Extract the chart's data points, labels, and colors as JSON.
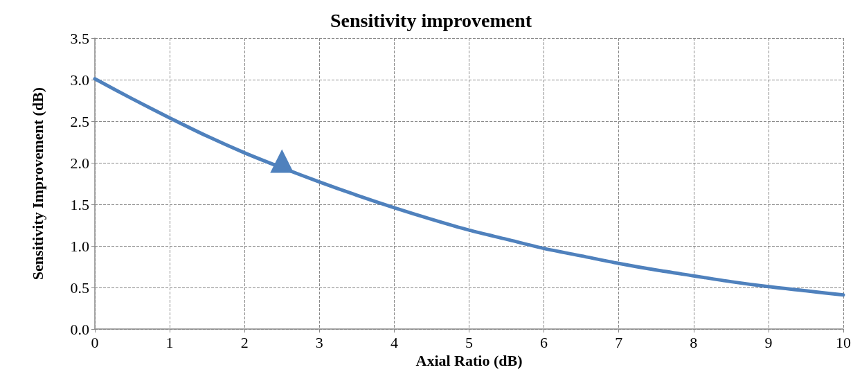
{
  "chart_data": {
    "type": "line",
    "title": "Sensitivity improvement",
    "xlabel": "Axial Ratio (dB)",
    "ylabel": "Sensitivity Improvement (dB)",
    "xlim": [
      0,
      10
    ],
    "xticks": [
      0,
      1,
      2,
      3,
      4,
      5,
      6,
      7,
      8,
      9,
      10
    ],
    "ylim": [
      0,
      3.5
    ],
    "yticks": [
      {
        "value": 0,
        "label": "0.0"
      },
      {
        "value": 0.5,
        "label": "0.5"
      },
      {
        "value": 1,
        "label": "1.0"
      },
      {
        "value": 1.5,
        "label": "1.5"
      },
      {
        "value": 2,
        "label": "2.0"
      },
      {
        "value": 2.5,
        "label": "2.5"
      },
      {
        "value": 3,
        "label": "3.0"
      },
      {
        "value": 3.5,
        "label": "3.5"
      }
    ],
    "grid": true,
    "series": [
      {
        "color": "#4f81bd",
        "marker": "none",
        "line_style": "solid",
        "x": [
          0,
          0.5,
          1,
          1.5,
          2,
          2.5,
          3,
          3.5,
          4,
          4.5,
          5,
          5.5,
          6,
          6.5,
          7,
          7.5,
          8,
          8.5,
          9,
          9.5,
          10
        ],
        "values": [
          3.01,
          2.77,
          2.54,
          2.32,
          2.12,
          1.94,
          1.77,
          1.61,
          1.46,
          1.32,
          1.19,
          1.08,
          0.97,
          0.88,
          0.79,
          0.71,
          0.64,
          0.57,
          0.51,
          0.46,
          0.41
        ]
      },
      {
        "type": "scatter",
        "color": "#4f81bd",
        "marker": "triangle",
        "x": [
          2.5
        ],
        "values": [
          2.02
        ]
      }
    ]
  }
}
